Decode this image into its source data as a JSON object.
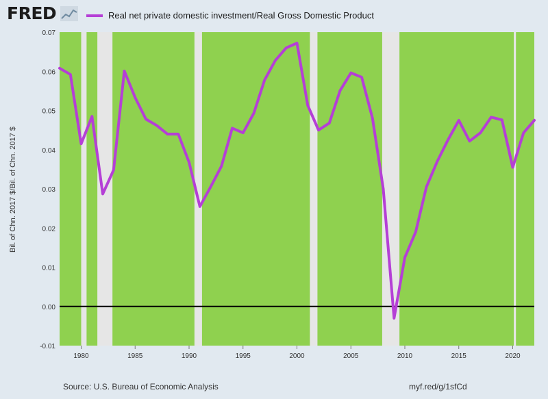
{
  "brand": {
    "name": "FRED",
    "icon": "chart-line-icon"
  },
  "legend": {
    "label": "Real net private domestic investment/Real Gross Domestic Product",
    "color": "#b53fd6"
  },
  "footer": {
    "source": "Source: U.S. Bureau of Economic Analysis",
    "link": "myf.red/g/1sfCd"
  },
  "colors": {
    "plot_background": "#8fd14f",
    "recession": "#e6e6e6",
    "series": "#b53fd6",
    "zero_line": "#000000"
  },
  "chart_data": {
    "type": "line",
    "title": "",
    "xlabel": "",
    "ylabel": "Bil. of Chn. 2017 $/Bil. of Chn. 2017 $",
    "xlim": [
      1978,
      2022
    ],
    "ylim": [
      -0.01,
      0.07
    ],
    "x_ticks": [
      1980,
      1985,
      1990,
      1995,
      2000,
      2005,
      2010,
      2015,
      2020
    ],
    "y_ticks": [
      "-0.01",
      "0.00",
      "0.01",
      "0.02",
      "0.03",
      "0.04",
      "0.05",
      "0.06",
      "0.07"
    ],
    "zero_line": 0,
    "grid": false,
    "recessions": [
      [
        1980.0,
        1980.5
      ],
      [
        1981.5,
        1982.9
      ],
      [
        1990.5,
        1991.2
      ],
      [
        2001.2,
        2001.9
      ],
      [
        2007.9,
        2009.5
      ],
      [
        2020.1,
        2020.3
      ]
    ],
    "series": [
      {
        "name": "Real net private domestic investment/Real Gross Domestic Product",
        "x": [
          1978,
          1979,
          1980,
          1981,
          1982,
          1983,
          1984,
          1985,
          1986,
          1987,
          1988,
          1989,
          1990,
          1991,
          1992,
          1993,
          1994,
          1995,
          1996,
          1997,
          1998,
          1999,
          2000,
          2001,
          2002,
          2003,
          2004,
          2005,
          2006,
          2007,
          2008,
          2009,
          2010,
          2011,
          2012,
          2013,
          2014,
          2015,
          2016,
          2017,
          2018,
          2019,
          2020,
          2021,
          2022
        ],
        "values": [
          0.0608,
          0.0592,
          0.0415,
          0.0485,
          0.0287,
          0.0348,
          0.0601,
          0.0533,
          0.0478,
          0.0462,
          0.044,
          0.044,
          0.0368,
          0.0255,
          0.0305,
          0.0358,
          0.0455,
          0.0443,
          0.0493,
          0.0578,
          0.0628,
          0.066,
          0.0672,
          0.0513,
          0.045,
          0.0468,
          0.0551,
          0.0596,
          0.0585,
          0.048,
          0.03,
          -0.003,
          0.0125,
          0.019,
          0.0305,
          0.037,
          0.0425,
          0.0475,
          0.0422,
          0.0443,
          0.0483,
          0.0476,
          0.0355,
          0.0443,
          0.0475
        ]
      }
    ]
  }
}
